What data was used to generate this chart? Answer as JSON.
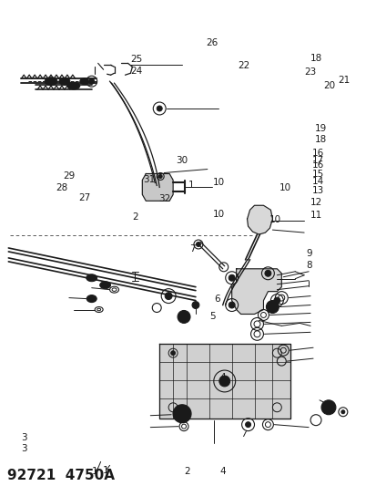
{
  "title": "92721  4750A",
  "bg_color": "#ffffff",
  "line_color": "#1a1a1a",
  "title_fontsize": 11,
  "label_fontsize": 7.5,
  "fig_width": 4.14,
  "fig_height": 5.33,
  "dpi": 100
}
